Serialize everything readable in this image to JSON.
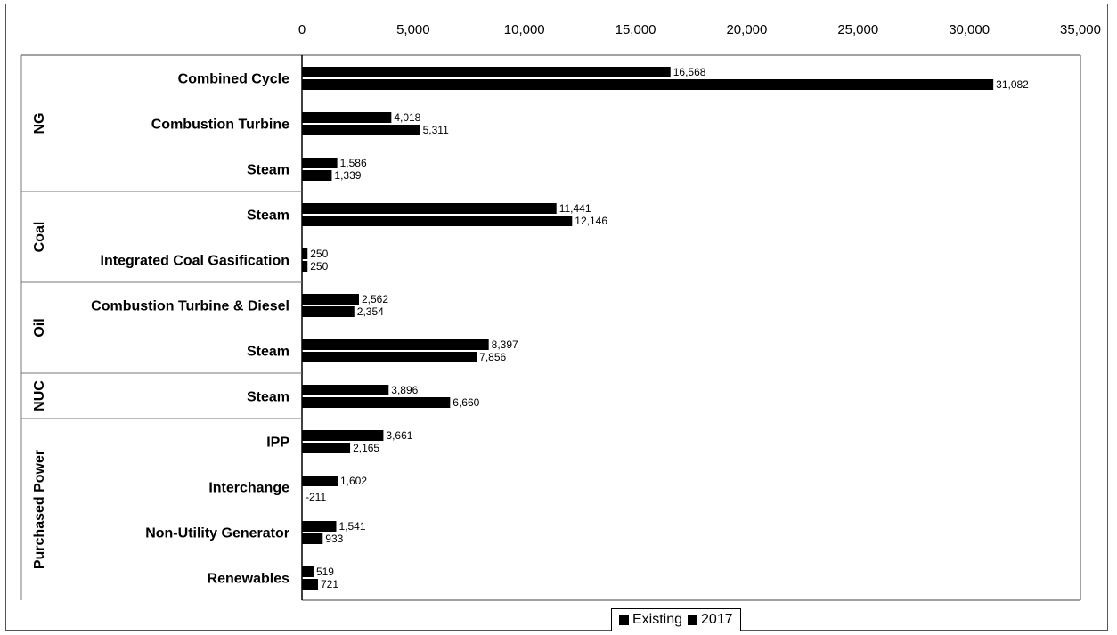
{
  "chart_data": {
    "type": "bar",
    "orientation": "horizontal",
    "xlim": [
      0,
      35000
    ],
    "x_ticks": [
      "0",
      "5,000",
      "10,000",
      "15,000",
      "20,000",
      "25,000",
      "30,000",
      "35,000"
    ],
    "x_tick_values": [
      0,
      5000,
      10000,
      15000,
      20000,
      25000,
      30000,
      35000
    ],
    "grid": false,
    "legend_position": "bottom",
    "groups": [
      {
        "name": "NG",
        "categories": [
          "Combined Cycle",
          "Combustion Turbine",
          "Steam"
        ]
      },
      {
        "name": "Coal",
        "categories": [
          "Steam",
          "Integrated Coal Gasification"
        ]
      },
      {
        "name": "Oil",
        "categories": [
          "Combustion Turbine & Diesel",
          "Steam"
        ]
      },
      {
        "name": "NUC",
        "categories": [
          "Steam"
        ]
      },
      {
        "name": "Purchased Power",
        "categories": [
          "IPP",
          "Interchange",
          "Non-Utility Generator",
          "Renewables"
        ]
      }
    ],
    "series": [
      {
        "name": "Existing",
        "color": "#000000",
        "values": [
          16568,
          4018,
          1586,
          11441,
          250,
          2562,
          8397,
          3896,
          3661,
          1602,
          1541,
          519
        ],
        "labels": [
          "16,568",
          "4,018",
          "1,586",
          "11,441",
          "250",
          "2,562",
          "8,397",
          "3,896",
          "3,661",
          "1,602",
          "1,541",
          "519"
        ]
      },
      {
        "name": "2017",
        "color": "#000000",
        "values": [
          31082,
          5311,
          1339,
          12146,
          250,
          2354,
          7856,
          6660,
          2165,
          -211,
          933,
          721
        ],
        "labels": [
          "31,082",
          "5,311",
          "1,339",
          "12,146",
          "250",
          "2,354",
          "7,856",
          "6,660",
          "2,165",
          "-211",
          "933",
          "721"
        ]
      }
    ]
  }
}
